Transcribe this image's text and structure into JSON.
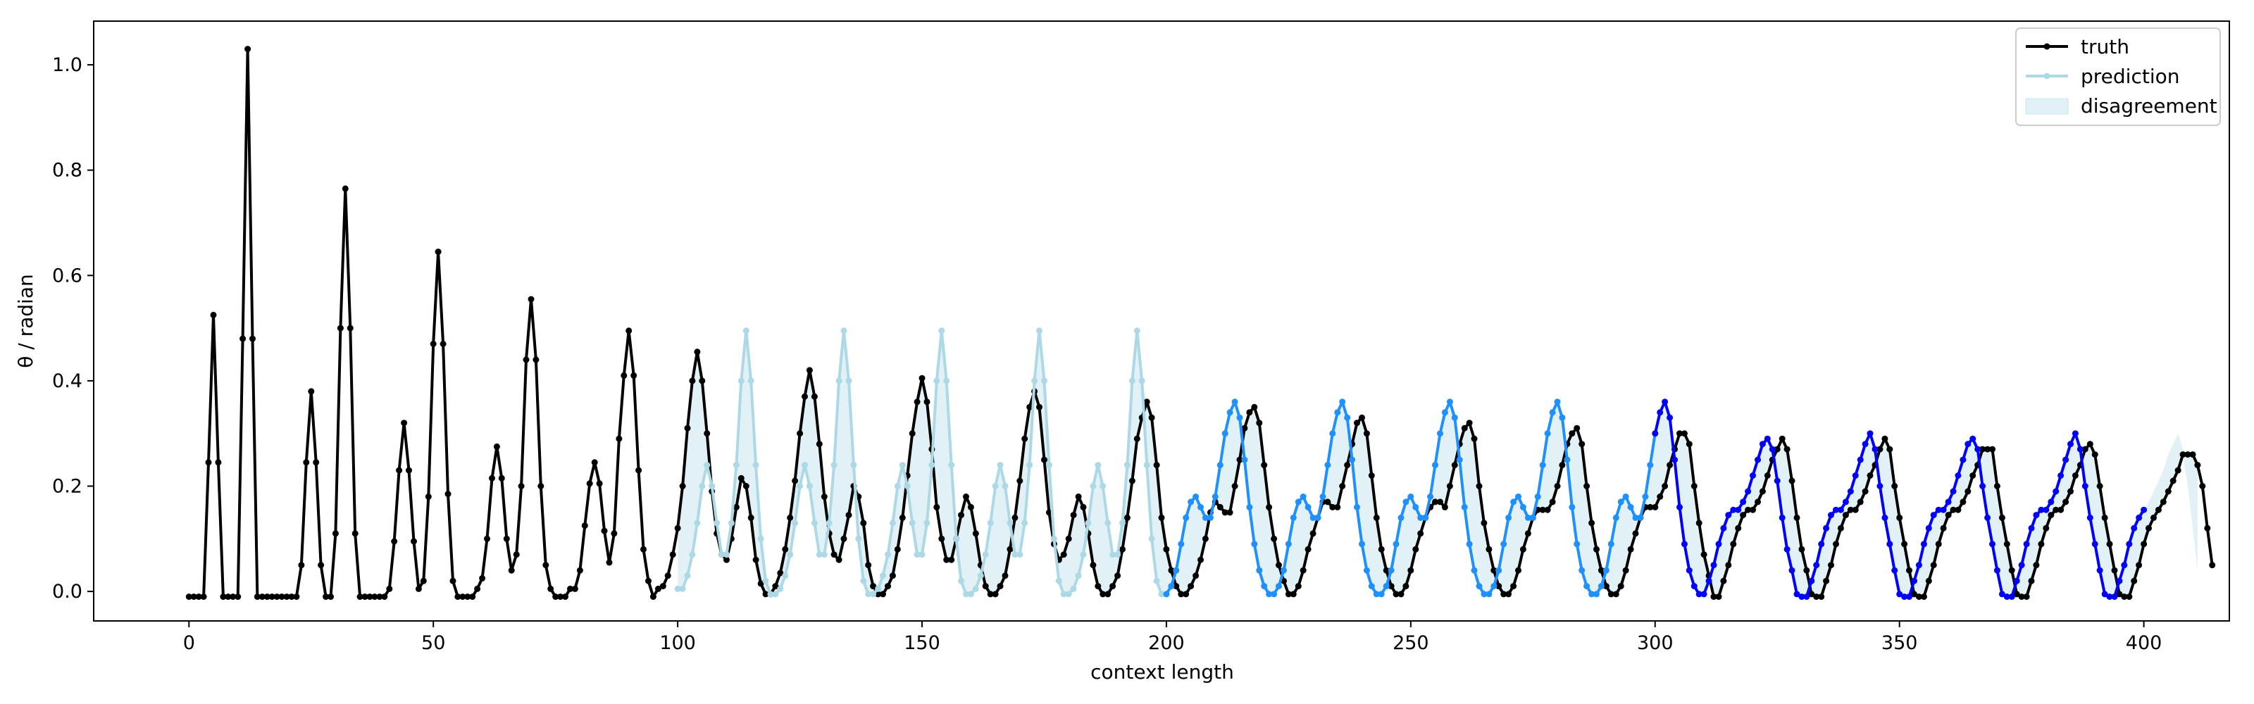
{
  "chart_data": {
    "type": "line",
    "title": "",
    "xlabel": "context length",
    "ylabel": "θ / radian",
    "xlim": [
      -19.5,
      417.5
    ],
    "ylim": [
      -0.056,
      1.083
    ],
    "xticks": [
      0,
      50,
      100,
      150,
      200,
      250,
      300,
      350,
      400
    ],
    "yticks": [
      0.0,
      0.2,
      0.4,
      0.6,
      0.8,
      1.0
    ],
    "ytick_labels": [
      "0.0",
      "0.2",
      "0.4",
      "0.6",
      "0.8",
      "1.0"
    ],
    "grid": false,
    "legend_position": "top-right",
    "legend": [
      "truth",
      "prediction",
      "disagreement"
    ],
    "colors": {
      "truth": "#000000",
      "prediction_light": "#add8e6",
      "prediction_mid": "#1e90ff",
      "prediction_dark": "#0000ff",
      "disagreement": "#add8e6"
    },
    "series": [
      {
        "name": "truth",
        "x_start": 0,
        "values": [
          -0.01,
          -0.01,
          -0.01,
          -0.01,
          0.245,
          0.525,
          0.245,
          -0.01,
          -0.01,
          -0.01,
          -0.01,
          0.48,
          1.03,
          0.48,
          -0.01,
          -0.01,
          -0.01,
          -0.01,
          -0.01,
          -0.01,
          -0.01,
          -0.01,
          -0.01,
          0.05,
          0.245,
          0.38,
          0.245,
          0.05,
          -0.01,
          -0.01,
          0.11,
          0.5,
          0.765,
          0.5,
          0.11,
          -0.01,
          -0.01,
          -0.01,
          -0.01,
          -0.01,
          -0.01,
          0.005,
          0.095,
          0.23,
          0.32,
          0.23,
          0.095,
          0.005,
          0.02,
          0.18,
          0.47,
          0.645,
          0.47,
          0.185,
          0.02,
          -0.01,
          -0.01,
          -0.01,
          -0.01,
          0.005,
          0.025,
          0.1,
          0.215,
          0.275,
          0.215,
          0.1,
          0.04,
          0.07,
          0.2,
          0.44,
          0.555,
          0.44,
          0.2,
          0.05,
          0.005,
          -0.01,
          -0.01,
          -0.01,
          0.005,
          0.005,
          0.04,
          0.125,
          0.205,
          0.245,
          0.205,
          0.115,
          0.055,
          0.11,
          0.29,
          0.41,
          0.495,
          0.41,
          0.23,
          0.08,
          0.02,
          -0.01,
          0.005,
          0.01,
          0.03,
          0.07,
          0.12,
          0.2,
          0.31,
          0.4,
          0.455,
          0.4,
          0.3,
          0.19,
          0.11,
          0.07,
          0.06,
          0.1,
          0.16,
          0.215,
          0.2,
          0.14,
          0.06,
          0.015,
          -0.005,
          -0.005,
          0.01,
          0.035,
          0.08,
          0.14,
          0.21,
          0.3,
          0.37,
          0.42,
          0.37,
          0.28,
          0.18,
          0.11,
          0.07,
          0.06,
          0.1,
          0.145,
          0.2,
          0.18,
          0.13,
          0.05,
          0.01,
          -0.005,
          -0.005,
          0.01,
          0.03,
          0.08,
          0.14,
          0.22,
          0.3,
          0.36,
          0.405,
          0.36,
          0.27,
          0.16,
          0.1,
          0.06,
          0.06,
          0.1,
          0.145,
          0.18,
          0.16,
          0.11,
          0.05,
          0.01,
          -0.005,
          -0.005,
          0.01,
          0.03,
          0.08,
          0.14,
          0.21,
          0.29,
          0.35,
          0.38,
          0.35,
          0.25,
          0.15,
          0.09,
          0.06,
          0.07,
          0.1,
          0.145,
          0.18,
          0.16,
          0.11,
          0.05,
          0.01,
          -0.005,
          -0.005,
          0.01,
          0.03,
          0.08,
          0.14,
          0.21,
          0.29,
          0.33,
          0.36,
          0.33,
          0.24,
          0.14,
          0.08,
          0.04,
          0.01,
          -0.005,
          -0.005,
          0.01,
          0.03,
          0.06,
          0.1,
          0.15,
          0.17,
          0.16,
          0.15,
          0.15,
          0.2,
          0.25,
          0.31,
          0.34,
          0.35,
          0.32,
          0.24,
          0.16,
          0.1,
          0.05,
          0.02,
          -0.005,
          -0.005,
          0.01,
          0.04,
          0.08,
          0.11,
          0.14,
          0.17,
          0.17,
          0.16,
          0.16,
          0.2,
          0.24,
          0.28,
          0.32,
          0.33,
          0.3,
          0.22,
          0.14,
          0.08,
          0.04,
          0.01,
          -0.005,
          -0.005,
          0.01,
          0.04,
          0.08,
          0.11,
          0.14,
          0.16,
          0.17,
          0.17,
          0.16,
          0.2,
          0.24,
          0.28,
          0.31,
          0.32,
          0.29,
          0.2,
          0.13,
          0.08,
          0.04,
          0.01,
          -0.005,
          -0.005,
          0.01,
          0.04,
          0.08,
          0.11,
          0.14,
          0.155,
          0.155,
          0.155,
          0.17,
          0.2,
          0.24,
          0.28,
          0.3,
          0.31,
          0.28,
          0.2,
          0.13,
          0.08,
          0.04,
          0.01,
          -0.005,
          -0.005,
          0.01,
          0.04,
          0.08,
          0.11,
          0.14,
          0.16,
          0.16,
          0.16,
          0.18,
          0.2,
          0.24,
          0.27,
          0.3,
          0.3,
          0.28,
          0.2,
          0.13,
          0.07,
          0.03,
          -0.01,
          -0.01,
          0.02,
          0.05,
          0.09,
          0.12,
          0.145,
          0.155,
          0.155,
          0.17,
          0.19,
          0.22,
          0.25,
          0.27,
          0.29,
          0.27,
          0.21,
          0.14,
          0.08,
          0.04,
          -0.005,
          -0.01,
          -0.01,
          0.02,
          0.05,
          0.09,
          0.12,
          0.145,
          0.155,
          0.155,
          0.17,
          0.19,
          0.22,
          0.24,
          0.27,
          0.29,
          0.27,
          0.2,
          0.14,
          0.09,
          0.04,
          -0.005,
          -0.01,
          -0.01,
          0.02,
          0.05,
          0.09,
          0.12,
          0.145,
          0.155,
          0.155,
          0.17,
          0.19,
          0.22,
          0.24,
          0.27,
          0.27,
          0.27,
          0.2,
          0.14,
          0.09,
          0.04,
          -0.005,
          -0.01,
          -0.01,
          0.02,
          0.05,
          0.09,
          0.12,
          0.145,
          0.155,
          0.155,
          0.17,
          0.19,
          0.22,
          0.24,
          0.27,
          0.28,
          0.26,
          0.2,
          0.14,
          0.09,
          0.04,
          -0.005,
          -0.01,
          -0.01,
          0.02,
          0.05,
          0.09,
          0.12,
          0.14,
          0.155,
          0.17,
          0.19,
          0.21,
          0.23,
          0.26,
          0.26,
          0.26,
          0.24,
          0.2,
          0.12,
          0.05
        ]
      },
      {
        "name": "prediction",
        "x_start": 100,
        "values": [
          0.005,
          0.005,
          0.03,
          0.07,
          0.13,
          0.2,
          0.24,
          0.2,
          0.13,
          0.07,
          0.07,
          0.13,
          0.24,
          0.4,
          0.495,
          0.4,
          0.24,
          0.1,
          0.02,
          -0.005,
          -0.005,
          0.005,
          0.03,
          0.07,
          0.13,
          0.2,
          0.24,
          0.2,
          0.13,
          0.07,
          0.07,
          0.13,
          0.24,
          0.4,
          0.495,
          0.4,
          0.24,
          0.1,
          0.02,
          -0.005,
          -0.005,
          0.005,
          0.03,
          0.07,
          0.13,
          0.2,
          0.24,
          0.2,
          0.13,
          0.07,
          0.07,
          0.13,
          0.24,
          0.4,
          0.495,
          0.4,
          0.24,
          0.1,
          0.02,
          -0.005,
          -0.005,
          0.005,
          0.03,
          0.07,
          0.13,
          0.2,
          0.24,
          0.2,
          0.13,
          0.07,
          0.07,
          0.13,
          0.24,
          0.4,
          0.495,
          0.4,
          0.24,
          0.1,
          0.02,
          -0.005,
          -0.005,
          0.005,
          0.03,
          0.07,
          0.13,
          0.2,
          0.24,
          0.2,
          0.13,
          0.07,
          0.07,
          0.13,
          0.24,
          0.4,
          0.495,
          0.4,
          0.24,
          0.1,
          0.02,
          -0.005,
          -0.005,
          0.01,
          0.04,
          0.09,
          0.14,
          0.17,
          0.18,
          0.16,
          0.14,
          0.14,
          0.18,
          0.24,
          0.3,
          0.34,
          0.36,
          0.33,
          0.25,
          0.16,
          0.09,
          0.04,
          0.01,
          -0.005,
          -0.005,
          0.01,
          0.04,
          0.09,
          0.14,
          0.17,
          0.18,
          0.16,
          0.14,
          0.14,
          0.18,
          0.24,
          0.3,
          0.34,
          0.36,
          0.33,
          0.25,
          0.16,
          0.09,
          0.04,
          0.01,
          -0.005,
          -0.005,
          0.01,
          0.04,
          0.09,
          0.14,
          0.17,
          0.18,
          0.16,
          0.14,
          0.14,
          0.18,
          0.24,
          0.3,
          0.34,
          0.36,
          0.33,
          0.25,
          0.16,
          0.09,
          0.04,
          0.01,
          -0.005,
          -0.005,
          0.01,
          0.04,
          0.09,
          0.14,
          0.17,
          0.18,
          0.16,
          0.14,
          0.14,
          0.18,
          0.24,
          0.3,
          0.34,
          0.36,
          0.33,
          0.25,
          0.16,
          0.09,
          0.04,
          0.01,
          -0.005,
          -0.005,
          0.01,
          0.04,
          0.09,
          0.14,
          0.17,
          0.18,
          0.16,
          0.14,
          0.14,
          0.18,
          0.24,
          0.3,
          0.34,
          0.36,
          0.33,
          0.25,
          0.16,
          0.09,
          0.04,
          0.01,
          -0.005,
          -0.005,
          0.02,
          0.05,
          0.09,
          0.12,
          0.145,
          0.155,
          0.155,
          0.17,
          0.19,
          0.22,
          0.25,
          0.28,
          0.29,
          0.27,
          0.21,
          0.14,
          0.08,
          0.04,
          -0.005,
          -0.01,
          -0.01,
          0.02,
          0.05,
          0.09,
          0.12,
          0.145,
          0.155,
          0.155,
          0.17,
          0.19,
          0.22,
          0.25,
          0.28,
          0.3,
          0.27,
          0.2,
          0.14,
          0.09,
          0.04,
          -0.005,
          -0.01,
          -0.01,
          0.02,
          0.05,
          0.09,
          0.12,
          0.145,
          0.155,
          0.155,
          0.17,
          0.19,
          0.22,
          0.25,
          0.28,
          0.29,
          0.27,
          0.2,
          0.14,
          0.09,
          0.04,
          -0.005,
          -0.01,
          -0.01,
          0.02,
          0.05,
          0.09,
          0.12,
          0.145,
          0.155,
          0.155,
          0.17,
          0.19,
          0.22,
          0.25,
          0.28,
          0.3,
          0.27,
          0.2,
          0.14,
          0.09,
          0.04,
          -0.005,
          -0.01,
          -0.01,
          0.02,
          0.05,
          0.09,
          0.12,
          0.14,
          0.155,
          0.17,
          0.19,
          0.21,
          0.23,
          0.26,
          0.28,
          0.3,
          0.27,
          0.2,
          0.12,
          0.04
        ]
      }
    ]
  }
}
